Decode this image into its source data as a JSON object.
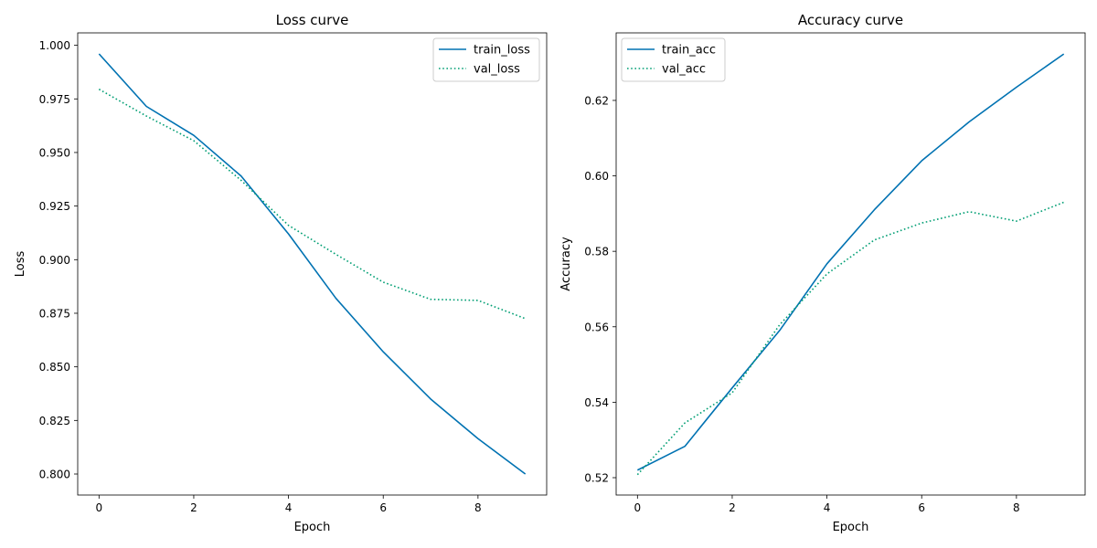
{
  "chart_data": [
    {
      "type": "line",
      "title": "Loss curve",
      "xlabel": "Epoch",
      "ylabel": "Loss",
      "xlim": [
        -0.45,
        9.45
      ],
      "ylim": [
        0.7902,
        1.0058
      ],
      "xticks": [
        0,
        2,
        4,
        6,
        8
      ],
      "yticks": [
        0.8,
        0.825,
        0.85,
        0.875,
        0.9,
        0.925,
        0.95,
        0.975,
        1.0
      ],
      "ytick_labels": [
        "0.800",
        "0.825",
        "0.850",
        "0.875",
        "0.900",
        "0.925",
        "0.950",
        "0.975",
        "1.000"
      ],
      "grid": false,
      "legend_position": "upper right",
      "x": [
        0,
        1,
        2,
        3,
        4,
        5,
        6,
        7,
        8,
        9
      ],
      "series": [
        {
          "name": "train_loss",
          "values": [
            0.996,
            0.9715,
            0.958,
            0.939,
            0.912,
            0.882,
            0.857,
            0.835,
            0.8165,
            0.8
          ],
          "color": "#0072b2",
          "style": "solid"
        },
        {
          "name": "val_loss",
          "values": [
            0.9795,
            0.967,
            0.9555,
            0.937,
            0.916,
            0.9025,
            0.8895,
            0.8815,
            0.881,
            0.8725
          ],
          "color": "#009e73",
          "style": "dotted"
        }
      ]
    },
    {
      "type": "line",
      "title": "Accuracy curve",
      "xlabel": "Epoch",
      "ylabel": "Accuracy",
      "xlim": [
        -0.45,
        9.45
      ],
      "ylim": [
        0.5154,
        0.6379
      ],
      "xticks": [
        0,
        2,
        4,
        6,
        8
      ],
      "yticks": [
        0.52,
        0.54,
        0.56,
        0.58,
        0.6,
        0.62
      ],
      "ytick_labels": [
        "0.52",
        "0.54",
        "0.56",
        "0.58",
        "0.60",
        "0.62"
      ],
      "grid": false,
      "legend_position": "upper left",
      "x": [
        0,
        1,
        2,
        3,
        4,
        5,
        6,
        7,
        8,
        9
      ],
      "series": [
        {
          "name": "train_acc",
          "values": [
            0.522,
            0.5283,
            0.5438,
            0.559,
            0.5767,
            0.591,
            0.604,
            0.6143,
            0.6235,
            0.6323
          ],
          "color": "#0072b2",
          "style": "solid"
        },
        {
          "name": "val_acc",
          "values": [
            0.5208,
            0.5345,
            0.5425,
            0.5605,
            0.574,
            0.583,
            0.5875,
            0.5905,
            0.588,
            0.593
          ],
          "color": "#009e73",
          "style": "dotted"
        }
      ]
    }
  ]
}
